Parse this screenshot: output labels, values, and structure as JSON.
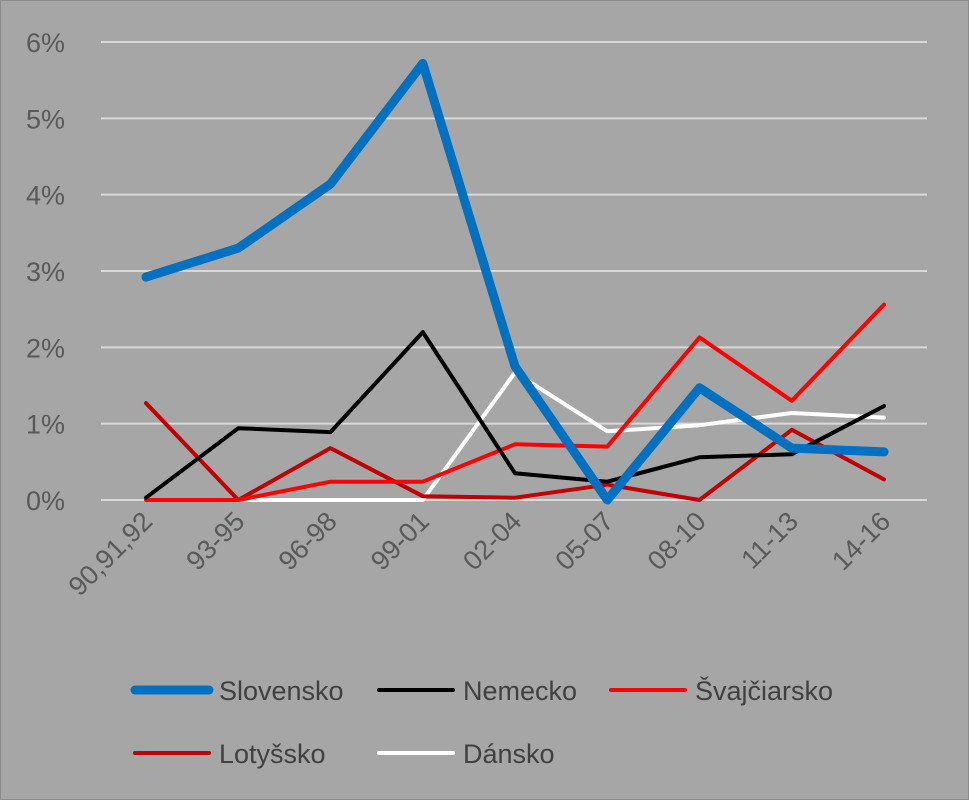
{
  "chart_data": {
    "type": "line",
    "title": "",
    "xlabel": "",
    "ylabel": "",
    "categories": [
      "90,91,92",
      "93-95",
      "96-98",
      "99-01",
      "02-04",
      "05-07",
      "08-10",
      "11-13",
      "14-16"
    ],
    "ylim": [
      0,
      6
    ],
    "y_ticks": [
      0,
      1,
      2,
      3,
      4,
      5,
      6
    ],
    "y_tick_labels": [
      "0%",
      "1%",
      "2%",
      "3%",
      "4%",
      "5%",
      "6%"
    ],
    "grid": true,
    "legend_position": "bottom",
    "background_color": "#a6a6a6",
    "grid_color": "#d9d9d9",
    "series": [
      {
        "name": "Slovensko",
        "color": "#0070c0",
        "width": "thick",
        "values": [
          2.92,
          3.3,
          4.14,
          5.72,
          1.75,
          0.0,
          1.47,
          0.68,
          0.63
        ]
      },
      {
        "name": "Nemecko",
        "color": "#000000",
        "width": "normal",
        "values": [
          0.03,
          0.94,
          0.89,
          2.2,
          0.35,
          0.24,
          0.56,
          0.6,
          1.23
        ]
      },
      {
        "name": "Švajčiarsko",
        "color": "#ff0000",
        "width": "normal",
        "values": [
          0.0,
          0.0,
          0.24,
          0.24,
          0.73,
          0.7,
          2.13,
          1.3,
          2.56
        ]
      },
      {
        "name": "Lotyšsko",
        "color": "#c00000",
        "width": "normal",
        "values": [
          1.27,
          0.0,
          0.68,
          0.05,
          0.03,
          0.2,
          0.0,
          0.92,
          0.27
        ]
      },
      {
        "name": "Dánsko",
        "color": "#ffffff",
        "width": "normal",
        "values": [
          0.0,
          0.0,
          0.0,
          0.0,
          1.67,
          0.9,
          0.98,
          1.14,
          1.08
        ]
      }
    ]
  }
}
